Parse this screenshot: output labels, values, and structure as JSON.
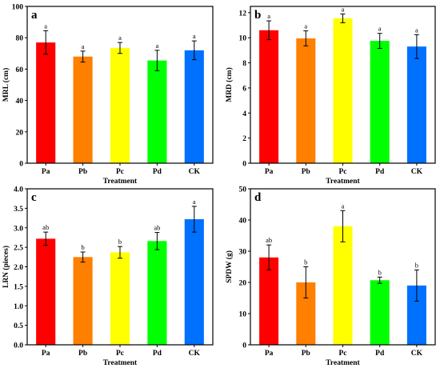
{
  "chart_data": [
    {
      "type": "bar",
      "panel": "a",
      "categories": [
        "Pa",
        "Pb",
        "Pc",
        "Pd",
        "CK"
      ],
      "values": [
        77,
        68,
        73.5,
        65.5,
        72
      ],
      "errors": [
        7.5,
        3.5,
        3.5,
        6.5,
        6
      ],
      "significance": [
        "a",
        "a",
        "a",
        "a",
        "a"
      ],
      "colors": [
        "#ff0000",
        "#ff7f00",
        "#ffff00",
        "#00ff00",
        "#0070ff"
      ],
      "xlabel": "Treatment",
      "ylabel": "MRL (cm)",
      "ylim": [
        0,
        100
      ],
      "yticks": [
        0,
        20,
        40,
        60,
        80,
        100
      ]
    },
    {
      "type": "bar",
      "panel": "b",
      "categories": [
        "Pa",
        "Pb",
        "Pc",
        "Pd",
        "CK"
      ],
      "values": [
        10.6,
        9.95,
        11.55,
        9.75,
        9.3
      ],
      "errors": [
        0.75,
        0.6,
        0.35,
        0.6,
        0.95
      ],
      "significance": [
        "a",
        "a",
        "a",
        "a",
        "a"
      ],
      "colors": [
        "#ff0000",
        "#ff7f00",
        "#ffff00",
        "#00ff00",
        "#0070ff"
      ],
      "xlabel": "Treatment",
      "ylabel": "MRD (cm)",
      "ylim": [
        0,
        12.5
      ],
      "yticks": [
        0,
        2,
        4,
        6,
        8,
        10,
        12
      ]
    },
    {
      "type": "bar",
      "panel": "c",
      "categories": [
        "Pa",
        "Pb",
        "Pc",
        "Pd",
        "CK"
      ],
      "values": [
        2.72,
        2.25,
        2.37,
        2.66,
        3.22
      ],
      "errors": [
        0.17,
        0.13,
        0.15,
        0.22,
        0.33
      ],
      "significance": [
        "ab",
        "b",
        "b",
        "ab",
        "a"
      ],
      "colors": [
        "#ff0000",
        "#ff7f00",
        "#ffff00",
        "#00ff00",
        "#0070ff"
      ],
      "xlabel": "Treatment",
      "ylabel": "LRN (pieces)",
      "ylim": [
        0,
        4
      ],
      "yticks": [
        0,
        0.5,
        1,
        1.5,
        2,
        2.5,
        3,
        3.5,
        4
      ],
      "ytick_labels": [
        "0.0",
        "0.5",
        "1.0",
        "1.5",
        "2.0",
        "2.5",
        "3.0",
        "3.5",
        "4.0"
      ]
    },
    {
      "type": "bar",
      "panel": "d",
      "categories": [
        "Pa",
        "Pb",
        "Pc",
        "Pd",
        "CK"
      ],
      "values": [
        28,
        20,
        38,
        20.7,
        19
      ],
      "errors": [
        4,
        5,
        5,
        1,
        5
      ],
      "significance": [
        "ab",
        "b",
        "a",
        "b",
        "b"
      ],
      "colors": [
        "#ff0000",
        "#ff7f00",
        "#ffff00",
        "#00ff00",
        "#0070ff"
      ],
      "xlabel": "Treatment",
      "ylabel": "SPDW (g)",
      "ylim": [
        0,
        50
      ],
      "yticks": [
        0,
        10,
        20,
        30,
        40,
        50
      ]
    }
  ]
}
